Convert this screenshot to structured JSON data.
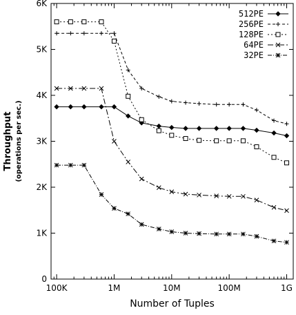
{
  "chart_data": {
    "type": "line",
    "xlabel": "Number of Tuples",
    "ylabel": "Throughput",
    "ylabel_sub": "(operations per sec.)",
    "x_scale": "log",
    "xlim": [
      80000,
      1300000000
    ],
    "ylim": [
      0,
      6000
    ],
    "x_ticks": [
      {
        "value": 100000,
        "label": "100K"
      },
      {
        "value": 1000000,
        "label": "1M"
      },
      {
        "value": 10000000,
        "label": "10M"
      },
      {
        "value": 100000000,
        "label": "100M"
      },
      {
        "value": 1000000000,
        "label": "1G"
      }
    ],
    "y_ticks": [
      {
        "value": 0,
        "label": "0"
      },
      {
        "value": 1000,
        "label": "1K"
      },
      {
        "value": 2000,
        "label": "2K"
      },
      {
        "value": 3000,
        "label": "3K"
      },
      {
        "value": 4000,
        "label": "4K"
      },
      {
        "value": 5000,
        "label": "5K"
      },
      {
        "value": 6000,
        "label": "6K"
      }
    ],
    "legend_position": "top-right",
    "grid": false,
    "series": [
      {
        "name": "512PE",
        "marker": "diamond",
        "dash": "solid",
        "x": [
          100000,
          175000,
          300000,
          600000,
          1000000,
          1750000,
          3000000,
          6000000,
          10000000,
          17500000,
          30000000,
          60000000,
          100000000,
          175000000,
          300000000,
          600000000,
          1000000000
        ],
        "y": [
          3750,
          3750,
          3750,
          3750,
          3750,
          3550,
          3400,
          3330,
          3300,
          3280,
          3280,
          3280,
          3280,
          3280,
          3240,
          3180,
          3120
        ]
      },
      {
        "name": "256PE",
        "marker": "plus",
        "dash": "4,3",
        "x": [
          100000,
          175000,
          300000,
          600000,
          1000000,
          1750000,
          3000000,
          6000000,
          10000000,
          17500000,
          30000000,
          60000000,
          100000000,
          175000000,
          300000000,
          600000000,
          1000000000
        ],
        "y": [
          5350,
          5350,
          5350,
          5350,
          5350,
          4550,
          4150,
          3970,
          3870,
          3840,
          3820,
          3800,
          3800,
          3800,
          3680,
          3450,
          3380
        ]
      },
      {
        "name": "128PE",
        "marker": "square",
        "dash": "2,3",
        "x": [
          100000,
          175000,
          300000,
          600000,
          1000000,
          1750000,
          3000000,
          6000000,
          10000000,
          17500000,
          30000000,
          60000000,
          100000000,
          175000000,
          300000000,
          600000000,
          1000000000
        ],
        "y": [
          5600,
          5600,
          5600,
          5600,
          5180,
          3980,
          3470,
          3230,
          3130,
          3060,
          3020,
          3010,
          3010,
          3010,
          2880,
          2650,
          2530
        ]
      },
      {
        "name": "64PE",
        "marker": "x",
        "dash": "8,3,2,3",
        "x": [
          100000,
          175000,
          300000,
          600000,
          1000000,
          1750000,
          3000000,
          6000000,
          10000000,
          17500000,
          30000000,
          60000000,
          100000000,
          175000000,
          300000000,
          600000000,
          1000000000
        ],
        "y": [
          4150,
          4150,
          4150,
          4150,
          3000,
          2550,
          2180,
          1990,
          1900,
          1850,
          1830,
          1810,
          1800,
          1800,
          1720,
          1560,
          1490
        ]
      },
      {
        "name": "32PE",
        "marker": "star",
        "dash": "6,2,1,2",
        "x": [
          100000,
          175000,
          300000,
          600000,
          1000000,
          1750000,
          3000000,
          6000000,
          10000000,
          17500000,
          30000000,
          60000000,
          100000000,
          175000000,
          300000000,
          600000000,
          1000000000
        ],
        "y": [
          2480,
          2480,
          2480,
          1840,
          1540,
          1420,
          1190,
          1090,
          1030,
          1000,
          990,
          980,
          980,
          980,
          930,
          830,
          800
        ]
      }
    ]
  }
}
